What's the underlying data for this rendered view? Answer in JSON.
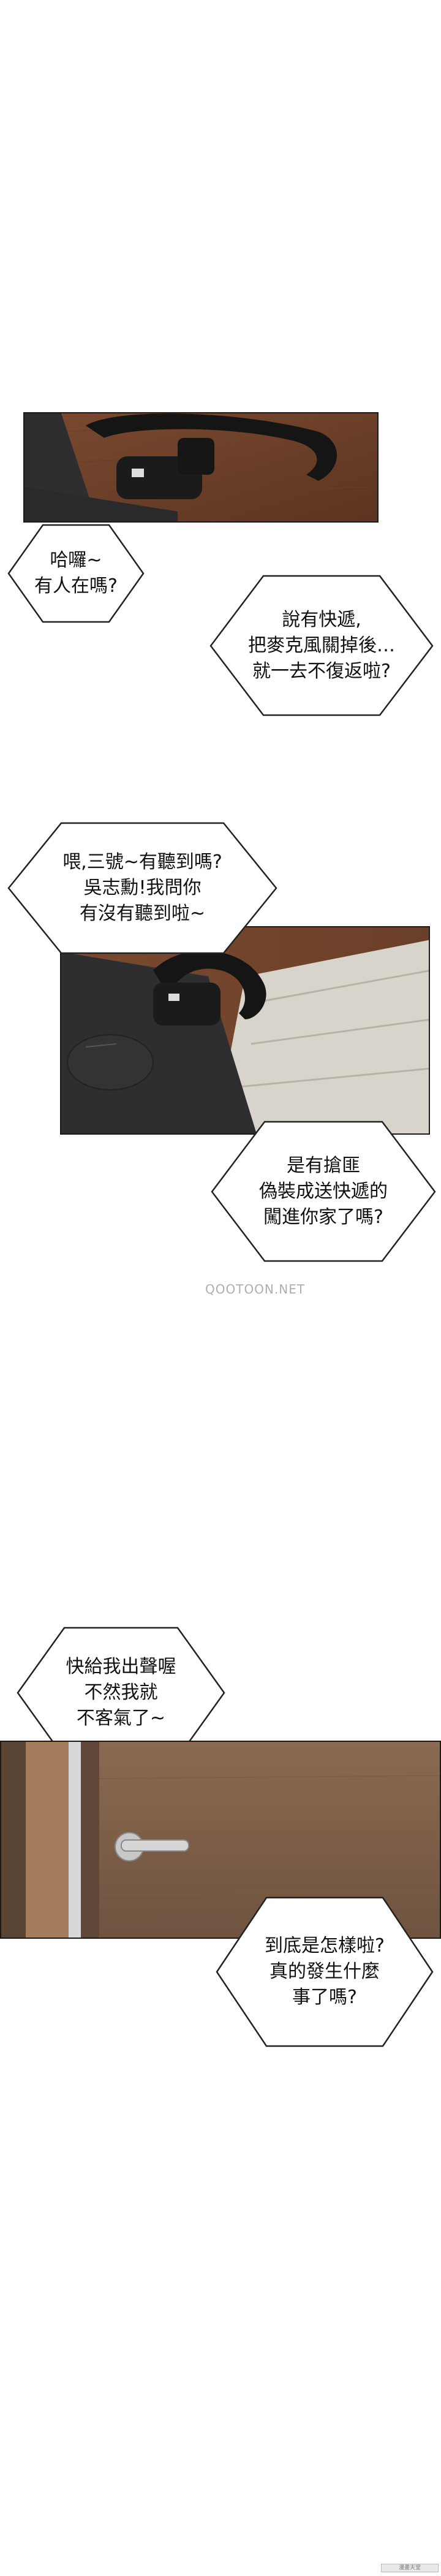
{
  "bubbles": {
    "b1": [
      "哈囉~",
      "有人在嗎?"
    ],
    "b2": [
      "說有快遞,",
      "把麥克風關掉後…",
      "就一去不復返啦?"
    ],
    "b3": [
      "喂,三號~有聽到嗎?",
      "吳志勳!我問你",
      "有沒有聽到啦~"
    ],
    "b4": [
      "是有搶匪",
      "偽裝成送快遞的",
      "闖進你家了嗎?"
    ],
    "b5": [
      "快給我出聲喔",
      "不然我就",
      "不客氣了~"
    ],
    "b6": [
      "到底是怎樣啦?",
      "真的發生什麼",
      "事了嗎?"
    ]
  },
  "watermark": "QOOTOON.NET",
  "corner_badge": "漫畫天堂"
}
